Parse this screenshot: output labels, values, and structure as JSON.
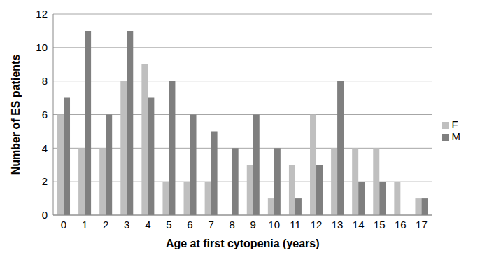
{
  "chart_data": {
    "type": "bar",
    "x_label": "Age at first cytopenia (years)",
    "y_label": "Number of ES patients",
    "categories": [
      "0",
      "1",
      "2",
      "3",
      "4",
      "5",
      "6",
      "7",
      "8",
      "9",
      "10",
      "11",
      "12",
      "13",
      "14",
      "15",
      "16",
      "17"
    ],
    "series": [
      {
        "name": "F",
        "color": "#bfbfbf",
        "values": [
          6,
          4,
          4,
          8,
          9,
          2,
          2,
          2,
          0,
          3,
          1,
          3,
          6,
          4,
          4,
          4,
          2,
          1
        ]
      },
      {
        "name": "M",
        "color": "#7f7f7f",
        "values": [
          7,
          11,
          6,
          11,
          7,
          8,
          6,
          5,
          4,
          6,
          4,
          1,
          3,
          8,
          2,
          2,
          0,
          1
        ]
      }
    ],
    "ylim": [
      0,
      12
    ],
    "yticks": [
      0,
      2,
      4,
      6,
      8,
      10,
      12
    ],
    "grid": true,
    "legend": "right"
  }
}
